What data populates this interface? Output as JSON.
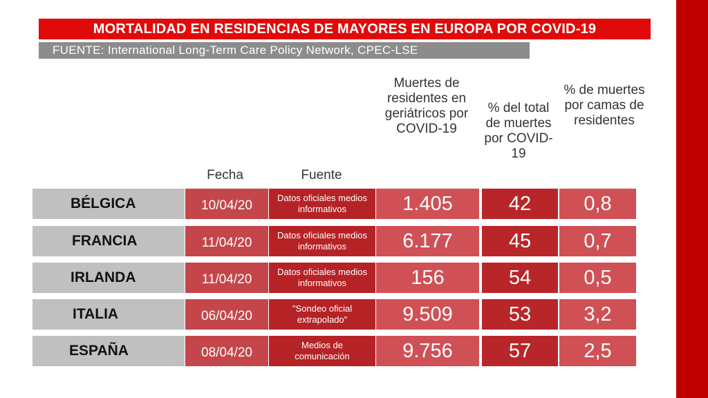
{
  "title": "MORTALIDAD EN RESIDENCIAS DE MAYORES EN EUROPA POR COVID-19",
  "source": "FUENTE: International Long-Term Care Policy Network, CPEC-LSE",
  "headers": {
    "fecha": "Fecha",
    "fuente": "Fuente",
    "muertes": "Muertes de residentes en geriátricos por COVID-19",
    "pct_total": "% del total de muertes por COVID-19",
    "pct_camas": "% de muertes por camas de residentes"
  },
  "colors": {
    "title_bg": "#e10a0a",
    "source_bg": "#8c8c8c",
    "country_bg": "#c0c0c0",
    "accent_red": "#b52326",
    "border": "#c00000"
  },
  "chart_data": {
    "type": "table",
    "title": "MORTALIDAD EN RESIDENCIAS DE MAYORES EN EUROPA POR COVID-19",
    "columns": [
      "",
      "Fecha",
      "Fuente",
      "Muertes de residentes en geriátricos por COVID-19",
      "% del total de muertes por COVID-19",
      "% de muertes por camas de residentes"
    ],
    "rows": [
      {
        "country": "BÉLGICA",
        "date": "10/04/20",
        "source": "Datos oficiales medios informativos",
        "deaths": "1.405",
        "pct_total": "42",
        "pct_beds": "0,8"
      },
      {
        "country": "FRANCIA",
        "date": "11/04/20",
        "source": "Datos oficiales medios informativos",
        "deaths": "6.177",
        "pct_total": "45",
        "pct_beds": "0,7"
      },
      {
        "country": "IRLANDA",
        "date": "11/04/20",
        "source": "Datos oficiales medios informativos",
        "deaths": "156",
        "pct_total": "54",
        "pct_beds": "0,5"
      },
      {
        "country": "ITALIA",
        "date": "06/04/20",
        "source": "\"Sondeo oficial extrapolado\"",
        "deaths": "9.509",
        "pct_total": "53",
        "pct_beds": "3,2"
      },
      {
        "country": "ESPAÑA",
        "date": "08/04/20",
        "source": "Medios de comunicación",
        "deaths": "9.756",
        "pct_total": "57",
        "pct_beds": "2,5"
      }
    ]
  }
}
